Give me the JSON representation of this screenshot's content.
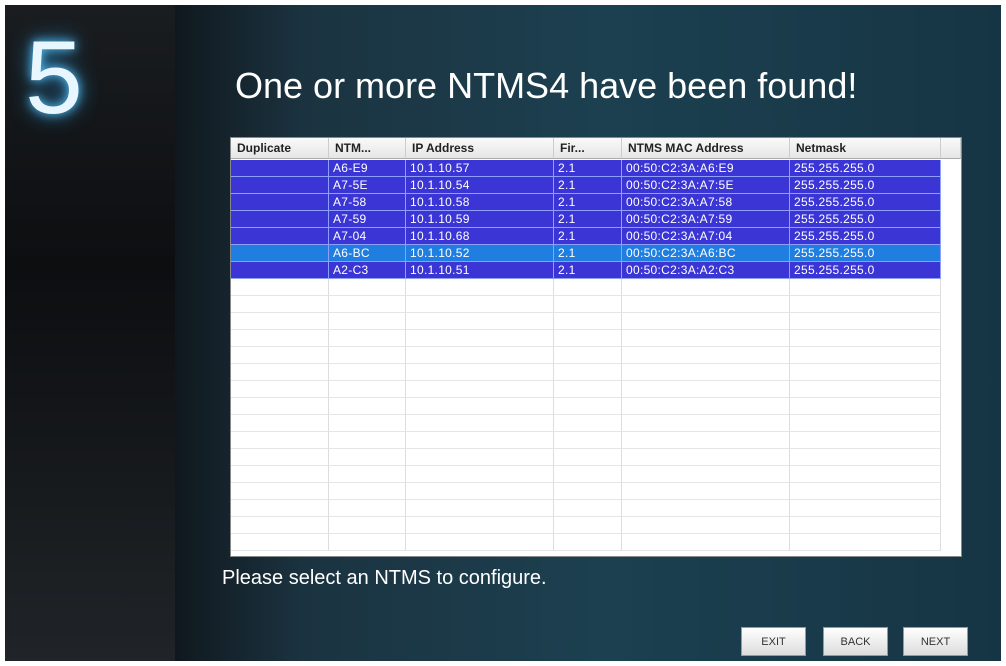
{
  "step": "5",
  "title": "One or more NTMS4 have been found!",
  "table": {
    "columns": [
      "Duplicate",
      "NTM...",
      "IP Address",
      "Fir...",
      "NTMS MAC Address",
      "Netmask"
    ],
    "rows": [
      [
        "A6-E9",
        "10.1.10.57",
        "2.1",
        "00:50:C2:3A:A6:E9",
        "255.255.255.0"
      ],
      [
        "A7-5E",
        "10.1.10.54",
        "2.1",
        "00:50:C2:3A:A7:5E",
        "255.255.255.0"
      ],
      [
        "A7-58",
        "10.1.10.58",
        "2.1",
        "00:50:C2:3A:A7:58",
        "255.255.255.0"
      ],
      [
        "A7-59",
        "10.1.10.59",
        "2.1",
        "00:50:C2:3A:A7:59",
        "255.255.255.0"
      ],
      [
        "A7-04",
        "10.1.10.68",
        "2.1",
        "00:50:C2:3A:A7:04",
        "255.255.255.0"
      ],
      [
        "A6-BC",
        "10.1.10.52",
        "2.1",
        "00:50:C2:3A:A6:BC",
        "255.255.255.0"
      ],
      [
        "A2-C3",
        "10.1.10.51",
        "2.1",
        "00:50:C2:3A:A2:C3",
        "255.255.255.0"
      ]
    ],
    "selected_row": 5
  },
  "instruction": "Please select an NTMS to configure.",
  "buttons": [
    "EXIT",
    "BACK",
    "NEXT"
  ]
}
